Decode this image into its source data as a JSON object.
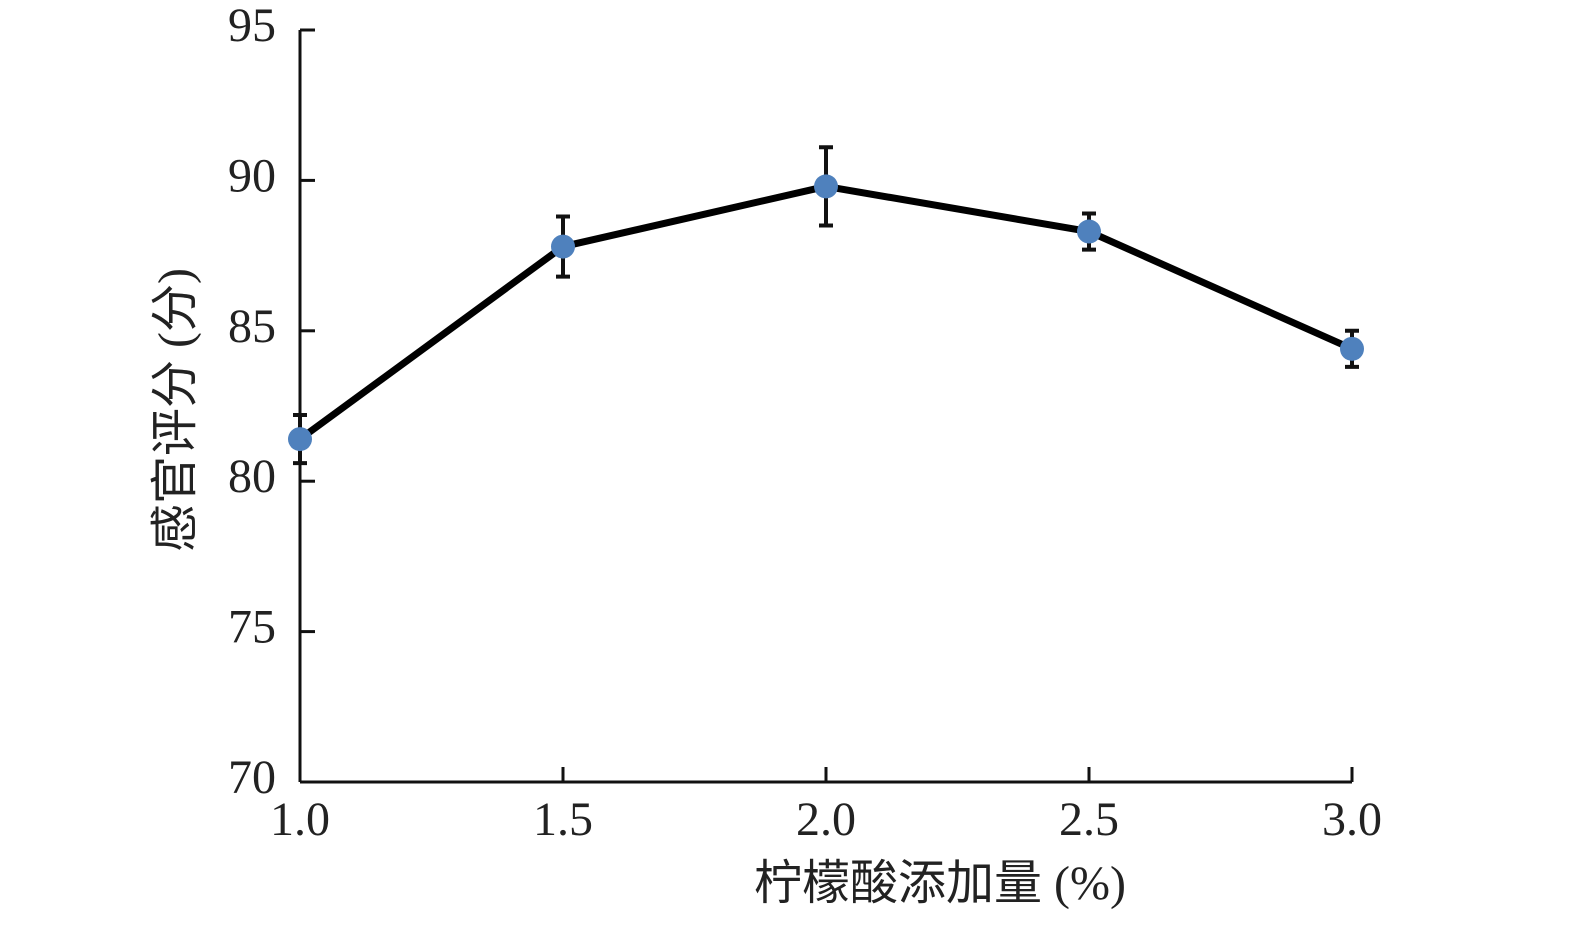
{
  "chart_data": {
    "type": "line",
    "x_label": "柠檬酸添加量 (%)",
    "y_label": "感官评分 (分)",
    "x": [
      1.0,
      1.5,
      2.0,
      2.5,
      3.0
    ],
    "values": [
      81.4,
      87.8,
      89.8,
      88.3,
      84.4
    ],
    "errors": [
      0.8,
      1.0,
      1.3,
      0.6,
      0.6
    ],
    "line_color": "#000000",
    "marker_color": "#4f81bd",
    "xlim": [
      1.0,
      3.0
    ],
    "xticks": [
      {
        "value": 1,
        "label": "1.0"
      },
      {
        "value": 1.5,
        "label": "1.5"
      },
      {
        "value": 2,
        "label": "2.0"
      },
      {
        "value": 2.5,
        "label": "2.5"
      },
      {
        "value": 3,
        "label": "3.0"
      }
    ],
    "ylim": [
      70,
      95
    ],
    "yticks": [
      70,
      75,
      80,
      85,
      90,
      95
    ],
    "grid": false
  }
}
